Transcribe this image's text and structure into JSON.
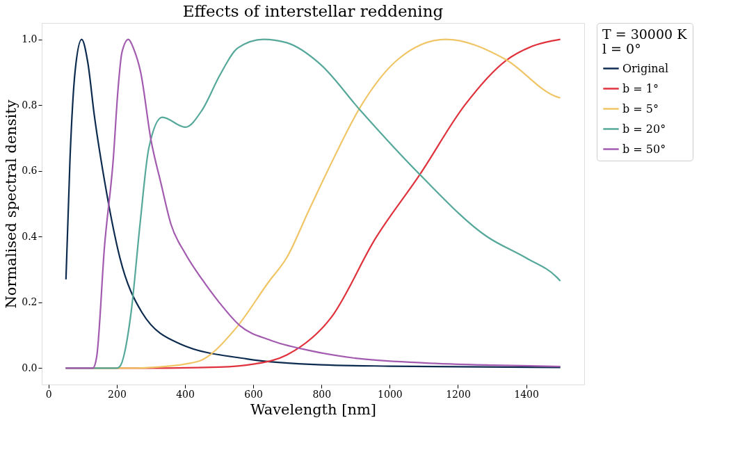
{
  "chart_data": {
    "type": "line",
    "title": "Effects of interstellar reddening",
    "xlabel": "Wavelength  [nm]",
    "ylabel": "Normalised spectral density",
    "legend_title": "T = 30000 K\n l = 0°",
    "legend": "right",
    "grid": false,
    "line_style": "solid",
    "marker": "none",
    "xlim": [
      -20,
      1570
    ],
    "ylim": [
      -0.05,
      1.05
    ],
    "xticks": [
      0,
      200,
      400,
      600,
      800,
      1000,
      1200,
      1400
    ],
    "yticks": [
      {
        "value": 0,
        "label": "0.0"
      },
      {
        "value": 0.2,
        "label": "0.2"
      },
      {
        "value": 0.4,
        "label": "0.4"
      },
      {
        "value": 0.6,
        "label": "0.6"
      },
      {
        "value": 0.8,
        "label": "0.8"
      },
      {
        "value": 1,
        "label": "1.0"
      }
    ],
    "series": [
      {
        "name": "Original",
        "color": "#0d2a4f",
        "x": [
          51,
          63,
          78,
          97,
          115,
          134,
          164,
          209,
          274,
          385,
          581,
          800,
          1000,
          1200,
          1500
        ],
        "values": [
          0.27,
          0.64,
          0.905,
          1.0,
          0.93,
          0.77,
          0.57,
          0.336,
          0.169,
          0.074,
          0.028,
          0.01,
          0.006,
          0.004,
          0.002
        ]
      },
      {
        "name": "b = 1°",
        "color": "#e0323c",
        "x": [
          50,
          300,
          500,
          600,
          698,
          829,
          959,
          1089,
          1220,
          1340,
          1420,
          1500
        ],
        "values": [
          0,
          0,
          0.003,
          0.012,
          0.04,
          0.155,
          0.396,
          0.59,
          0.8,
          0.935,
          0.98,
          1.0
        ]
      },
      {
        "name": "b = 5°",
        "color": "#f0c566",
        "x": [
          50,
          250,
          300,
          399,
          450,
          548,
          645,
          698,
          763,
          829,
          913,
          1025,
          1164,
          1338,
          1490,
          1500
        ],
        "values": [
          0,
          0,
          0.002,
          0.012,
          0.025,
          0.12,
          0.262,
          0.336,
          0.48,
          0.624,
          0.793,
          0.94,
          1.0,
          0.94,
          0.825,
          0.822
        ]
      },
      {
        "name": "b = 20°",
        "color": "#55a89a",
        "x": [
          50,
          200,
          209,
          242,
          268,
          294,
          333,
          401,
          450,
          503,
          555,
          630,
          698,
          796,
          913,
          1089,
          1285,
          1400,
          1490,
          1500
        ],
        "values": [
          0,
          0,
          0.005,
          0.17,
          0.437,
          0.67,
          0.763,
          0.733,
          0.785,
          0.893,
          0.974,
          1.0,
          0.99,
          0.925,
          0.785,
          0.588,
          0.4,
          0.335,
          0.276,
          0.265
        ]
      },
      {
        "name": "b = 50°",
        "color": "#a35bb0",
        "x": [
          50,
          130,
          141,
          164,
          190,
          203,
          215,
          234,
          250,
          270,
          300,
          330,
          359,
          400,
          450,
          500,
          561,
          650,
          763,
          900,
          1100,
          1300,
          1500
        ],
        "values": [
          0,
          0,
          0.034,
          0.37,
          0.64,
          0.84,
          0.96,
          1.0,
          0.97,
          0.9,
          0.695,
          0.56,
          0.437,
          0.35,
          0.27,
          0.2,
          0.129,
          0.085,
          0.054,
          0.03,
          0.016,
          0.009,
          0.005
        ]
      }
    ]
  }
}
